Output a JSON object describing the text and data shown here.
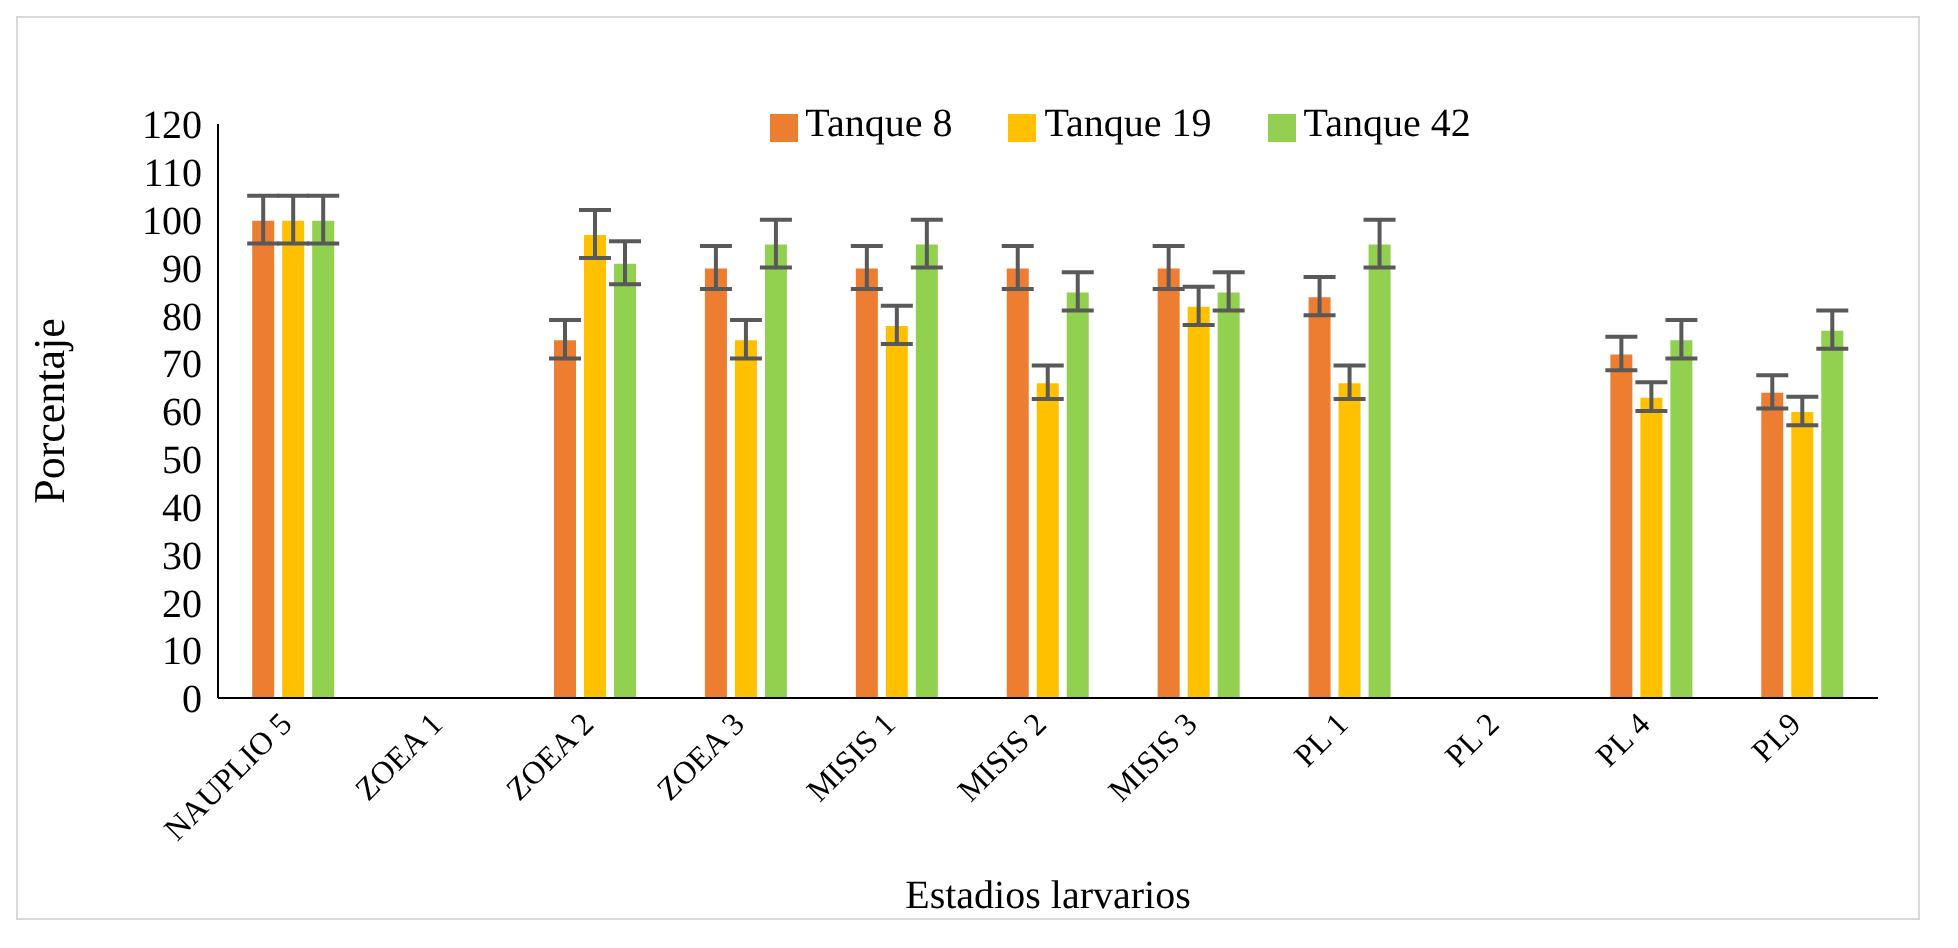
{
  "chart_data": {
    "type": "bar",
    "xlabel": "Estadios larvarios",
    "ylabel": "Porcentaje",
    "categories": [
      "NAUPLIO 5",
      "ZOEA 1",
      "ZOEA 2",
      "ZOEA 3",
      "MISIS 1",
      "MISIS 2",
      "MISIS 3",
      "PL 1",
      "PL 2",
      "PL 4",
      "PL9"
    ],
    "series": [
      {
        "name": "Tanque 8",
        "color": "#ed7d31",
        "values": [
          100,
          0,
          75,
          90,
          90,
          90,
          90,
          84,
          0,
          72,
          64
        ],
        "errors": [
          5,
          null,
          4,
          4.5,
          4.5,
          4.5,
          4.5,
          4,
          null,
          3.5,
          3.5
        ]
      },
      {
        "name": "Tanque 19",
        "color": "#ffc000",
        "values": [
          100,
          0,
          97,
          75,
          78,
          66,
          82,
          66,
          0,
          63,
          60
        ],
        "errors": [
          5,
          null,
          5,
          4,
          4,
          3.5,
          4,
          3.5,
          null,
          3,
          3
        ]
      },
      {
        "name": "Tanque 42",
        "color": "#92d050",
        "values": [
          100,
          0,
          91,
          95,
          95,
          85,
          85,
          95,
          0,
          75,
          77
        ],
        "errors": [
          5,
          null,
          4.5,
          5,
          5,
          4,
          4,
          5,
          null,
          4,
          4
        ]
      }
    ],
    "ylim": [
      0,
      120
    ],
    "yticks": [
      0,
      10,
      20,
      30,
      40,
      50,
      60,
      70,
      80,
      90,
      100,
      110,
      120
    ],
    "grid": false,
    "legend": "top"
  }
}
